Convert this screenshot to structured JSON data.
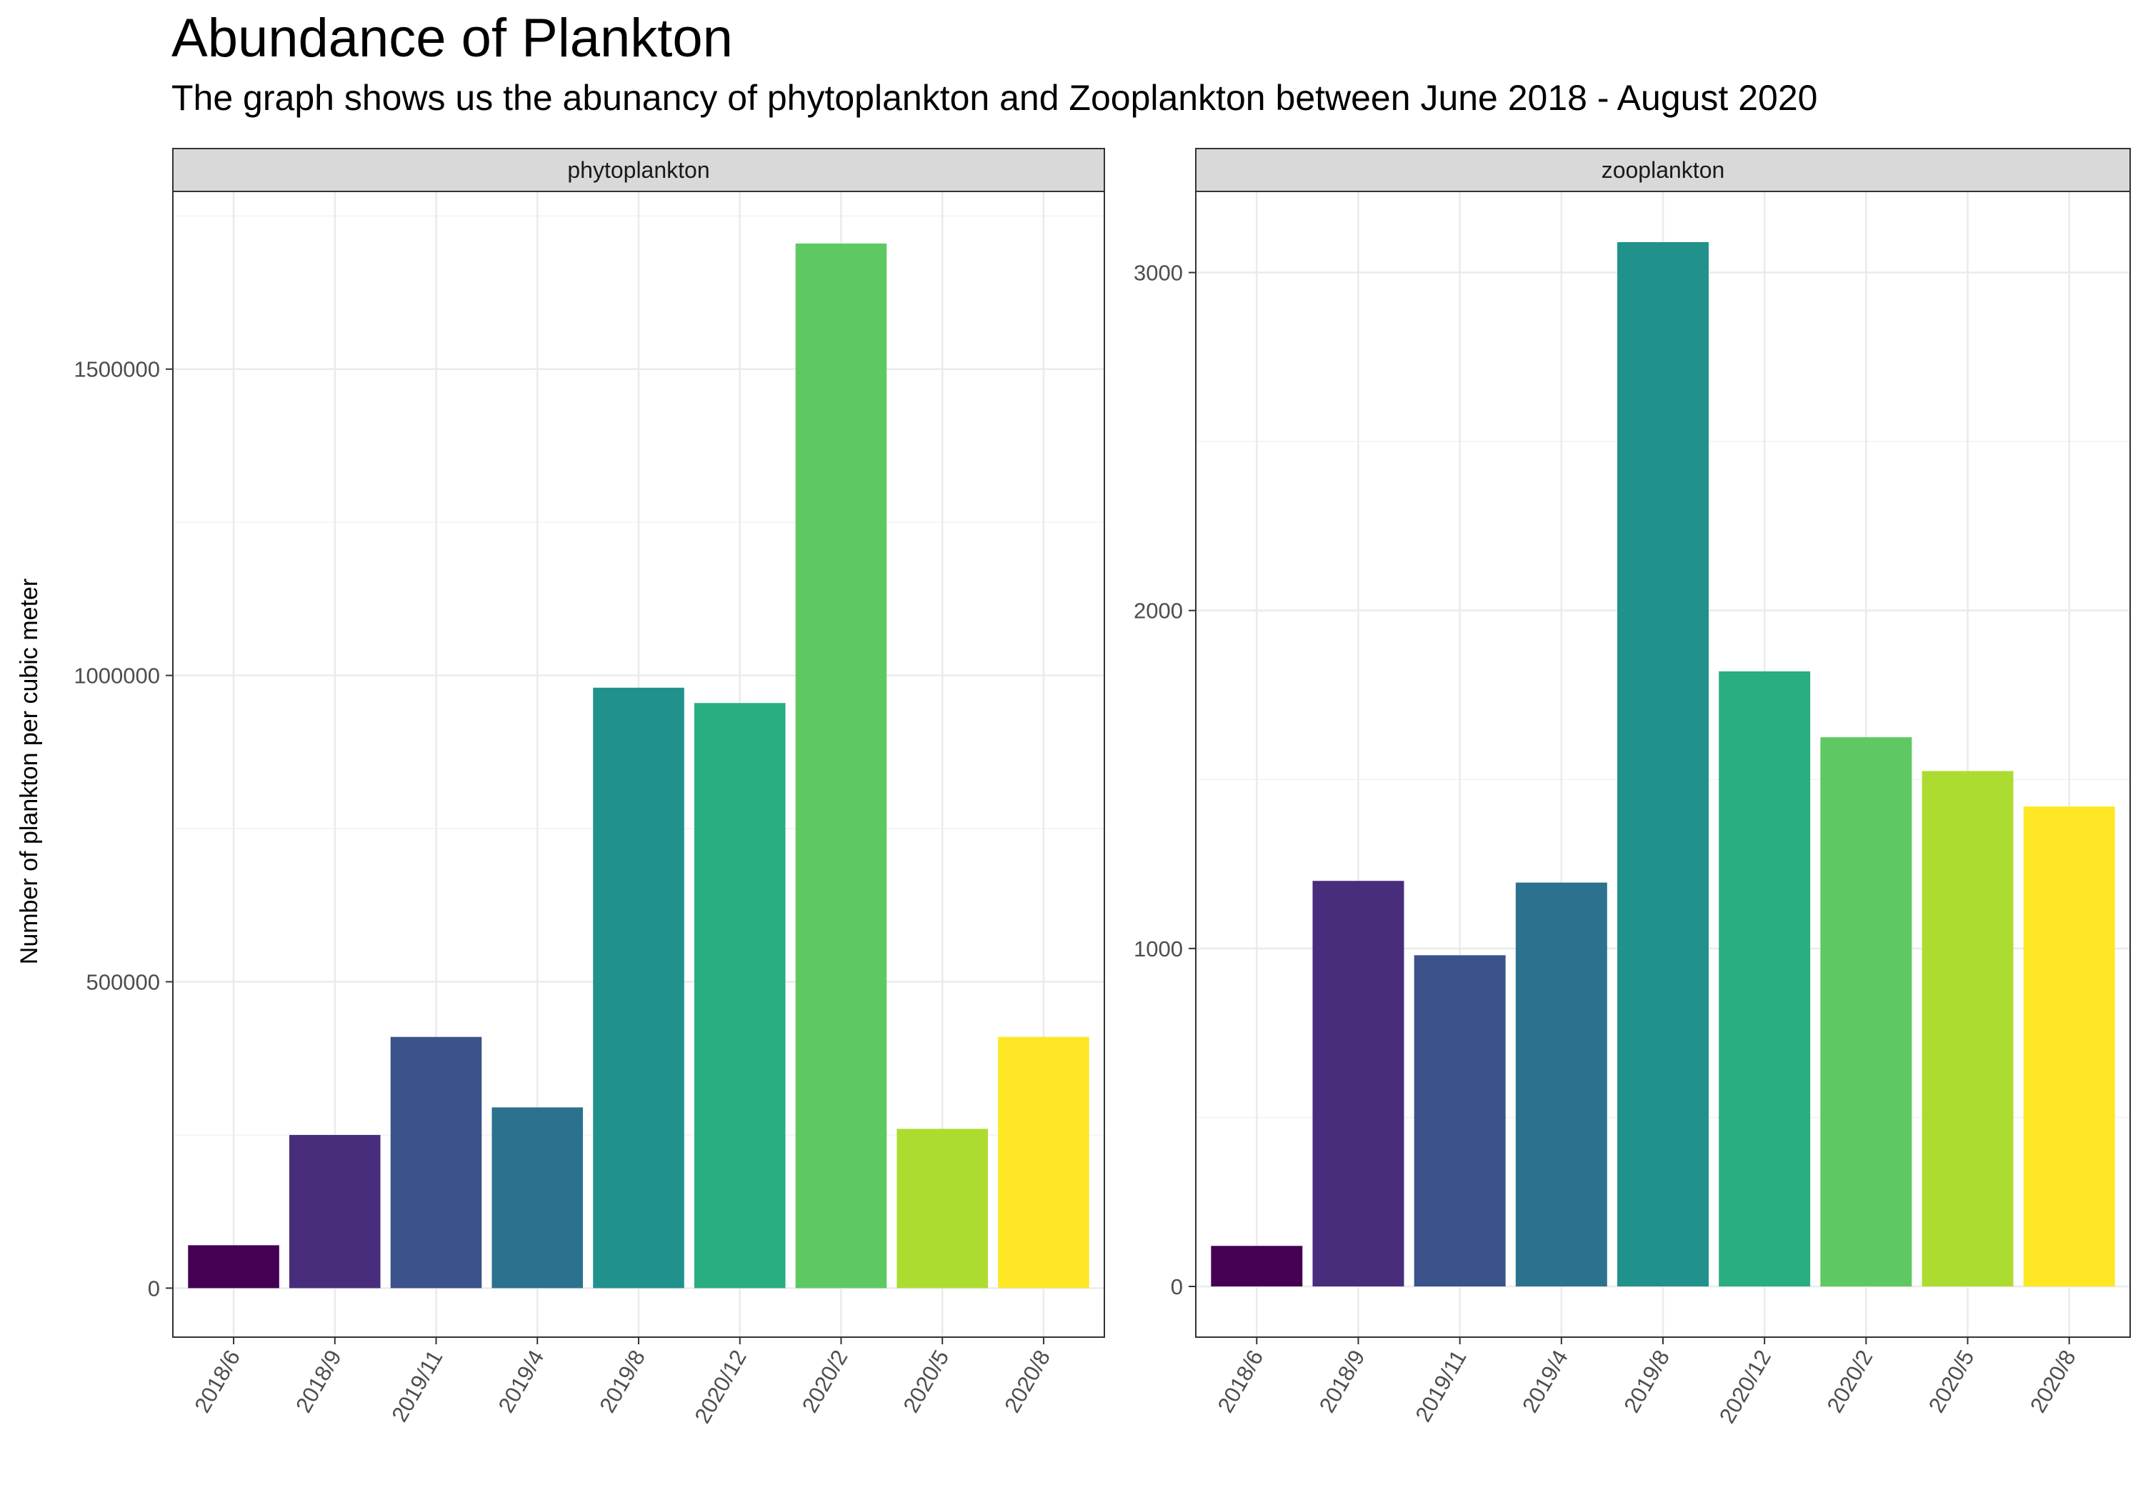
{
  "title": "Abundance of Plankton",
  "subtitle": "The graph shows us the abunancy of phytoplankton and Zooplankton between June 2018 - August 2020",
  "ylabel": "Number of plankton per cubic meter",
  "colors": [
    "#440154",
    "#482878",
    "#3e4a89",
    "#31688e",
    "#26828e",
    "#1f9e89",
    "#35b779",
    "#6ece58",
    "#b5de2b",
    "#fde725"
  ],
  "chart_data": [
    {
      "type": "bar",
      "panel": "phytoplankton",
      "categories": [
        "2018/6",
        "2018/9",
        "2019/11",
        "2019/4",
        "2019/8",
        "2020/12",
        "2020/2",
        "2020/5",
        "2020/8"
      ],
      "values": [
        70000,
        250000,
        410000,
        295000,
        980000,
        955000,
        1705000,
        260000,
        410000
      ],
      "bar_colors": [
        "#440154",
        "#472d7b",
        "#3b528b",
        "#2c728e",
        "#21918c",
        "#28ae80",
        "#5ec962",
        "#addc30",
        "#fde725"
      ],
      "yticks": [
        0,
        500000,
        1000000,
        1500000
      ],
      "ytick_labels": [
        "0",
        "500000",
        "1000000",
        "1500000"
      ],
      "ylim": [
        -80000,
        1790000
      ],
      "grid": true
    },
    {
      "type": "bar",
      "panel": "zooplankton",
      "categories": [
        "2018/6",
        "2018/9",
        "2019/11",
        "2019/4",
        "2019/8",
        "2020/12",
        "2020/2",
        "2020/5",
        "2020/8"
      ],
      "values": [
        120,
        1200,
        980,
        1195,
        3090,
        1820,
        1625,
        1525,
        1420
      ],
      "bar_colors": [
        "#440154",
        "#472d7b",
        "#3b528b",
        "#2c728e",
        "#21918c",
        "#28ae80",
        "#5ec962",
        "#addc30",
        "#fde725"
      ],
      "yticks": [
        0,
        1000,
        2000,
        3000
      ],
      "ytick_labels": [
        "0",
        "1000",
        "2000",
        "3000"
      ],
      "ylim": [
        -150,
        3240
      ],
      "grid": true
    }
  ]
}
